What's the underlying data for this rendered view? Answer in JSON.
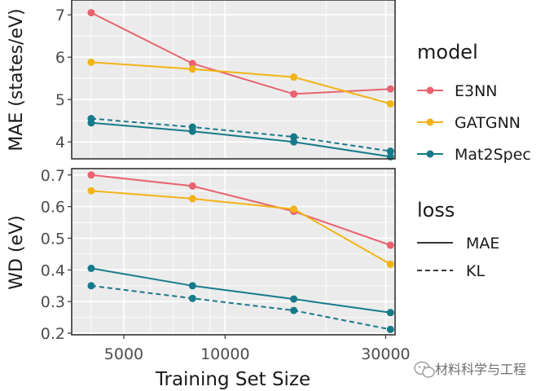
{
  "chart_data": [
    {
      "type": "line",
      "panel": "top",
      "ylabel": "MAE (states/eV)",
      "xscale": "log",
      "xlim": [
        3500,
        32000
      ],
      "ylim": [
        3.6,
        7.35
      ],
      "yticks": [
        4,
        5,
        6,
        7
      ],
      "grid": true,
      "series": [
        {
          "name": "E3NN",
          "loss": "MAE",
          "x": [
            4000,
            8000,
            16000,
            31000
          ],
          "y": [
            7.05,
            5.85,
            5.13,
            5.25
          ]
        },
        {
          "name": "GATGNN",
          "loss": "MAE",
          "x": [
            4000,
            8000,
            16000,
            31000
          ],
          "y": [
            5.88,
            5.72,
            5.53,
            4.9
          ]
        },
        {
          "name": "Mat2Spec",
          "loss": "MAE",
          "x": [
            4000,
            8000,
            16000,
            31000
          ],
          "y": [
            4.45,
            4.25,
            4.0,
            3.65
          ]
        },
        {
          "name": "Mat2Spec",
          "loss": "KL",
          "x": [
            4000,
            8000,
            16000,
            31000
          ],
          "y": [
            4.55,
            4.35,
            4.12,
            3.78
          ]
        }
      ]
    },
    {
      "type": "line",
      "panel": "bottom",
      "ylabel": "WD (eV)",
      "xlabel": "Training Set Size",
      "xscale": "log",
      "xlim": [
        3500,
        32000
      ],
      "ylim": [
        0.195,
        0.72
      ],
      "yticks": [
        0.2,
        0.3,
        0.4,
        0.5,
        0.6,
        0.7
      ],
      "xticks": [
        5000,
        10000,
        30000
      ],
      "grid": true,
      "series": [
        {
          "name": "E3NN",
          "loss": "MAE",
          "x": [
            4000,
            8000,
            16000,
            31000
          ],
          "y": [
            0.7,
            0.665,
            0.585,
            0.478
          ]
        },
        {
          "name": "GATGNN",
          "loss": "MAE",
          "x": [
            4000,
            8000,
            16000,
            31000
          ],
          "y": [
            0.65,
            0.625,
            0.592,
            0.418
          ]
        },
        {
          "name": "Mat2Spec",
          "loss": "MAE",
          "x": [
            4000,
            8000,
            16000,
            31000
          ],
          "y": [
            0.405,
            0.35,
            0.308,
            0.265
          ]
        },
        {
          "name": "Mat2Spec",
          "loss": "KL",
          "x": [
            4000,
            8000,
            16000,
            31000
          ],
          "y": [
            0.35,
            0.31,
            0.272,
            0.212
          ]
        }
      ]
    }
  ],
  "axes": {
    "top_ylabel": "MAE (states/eV)",
    "bottom_ylabel": "WD (eV)",
    "xlabel": "Training Set Size",
    "xtick_labels": [
      "5000",
      "10000",
      "30000"
    ],
    "top_ytick_labels": [
      "4",
      "5",
      "6",
      "7"
    ],
    "bottom_ytick_labels": [
      "0.2",
      "0.3",
      "0.4",
      "0.5",
      "0.6",
      "0.7"
    ]
  },
  "legend": {
    "model_title": "model",
    "models": [
      {
        "name": "E3NN",
        "color": "#e8636f"
      },
      {
        "name": "GATGNN",
        "color": "#f2b316"
      },
      {
        "name": "Mat2Spec",
        "color": "#167a8a"
      }
    ],
    "loss_title": "loss",
    "losses": [
      {
        "name": "MAE",
        "dash": "solid"
      },
      {
        "name": "KL",
        "dash": "dashed"
      }
    ]
  },
  "watermark": {
    "text": "材料科学与工程",
    "icon": "wechat-icon"
  },
  "colors": {
    "panel_bg": "#ebebeb",
    "grid": "#ffffff",
    "E3NN": "#e8636f",
    "GATGNN": "#f2b316",
    "Mat2Spec": "#167a8a"
  }
}
